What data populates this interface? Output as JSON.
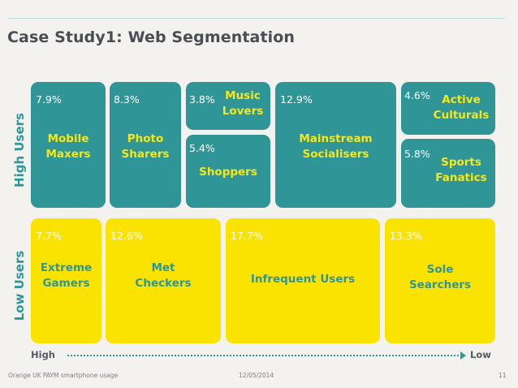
{
  "title": "Case Study1: Web Segmentation",
  "axis": {
    "high_users": "High Users",
    "low_users": "Low Users",
    "high": "High",
    "low": "Low"
  },
  "segments": {
    "mobile_maxers": {
      "pct": "7.9%",
      "name": "Mobile\nMaxers"
    },
    "photo_sharers": {
      "pct": "8.3%",
      "name": "Photo\nSharers"
    },
    "music_lovers": {
      "pct": "3.8%",
      "name": "Music\nLovers"
    },
    "shoppers": {
      "pct": "5.4%",
      "name": "Shoppers"
    },
    "mainstream_socialisers": {
      "pct": "12.9%",
      "name": "Mainstream\nSocialisers"
    },
    "active_culturals": {
      "pct": "4.6%",
      "name": "Active\nCulturals"
    },
    "sports_fanatics": {
      "pct": "5.8%",
      "name": "Sports\nFanatics"
    },
    "extreme_gamers": {
      "pct": "7.7%",
      "name": "Extreme\nGamers"
    },
    "met_checkers": {
      "pct": "12.6%",
      "name": "Met\nCheckers"
    },
    "infrequent_users": {
      "pct": "17.7%",
      "name": "Infrequent Users"
    },
    "sole_searchers": {
      "pct": "13.3%",
      "name": "Sole\nSearchers"
    }
  },
  "footer": {
    "left": "Orange UK PAYM smartphone usage",
    "center": "12/05/2014",
    "page": "11"
  },
  "colors": {
    "teal": "#2f9597",
    "yellow": "#fbe300"
  }
}
